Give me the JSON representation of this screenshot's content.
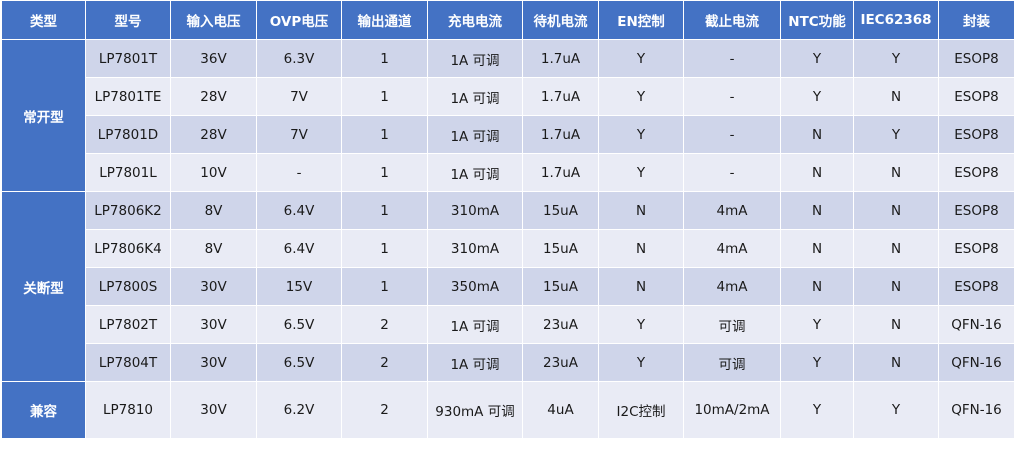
{
  "table": {
    "headers": [
      "类型",
      "型号",
      "输入电压",
      "OVP电压",
      "输出通道",
      "充电电流",
      "待机电流",
      "EN控制",
      "截止电流",
      "NTC功能",
      "IEC62368",
      "封装"
    ],
    "groups": [
      {
        "label": "常开型",
        "rows": [
          [
            "LP7801T",
            "36V",
            "6.3V",
            "1",
            "1A 可调",
            "1.7uA",
            "Y",
            "-",
            "Y",
            "Y",
            "ESOP8"
          ],
          [
            "LP7801TE",
            "28V",
            "7V",
            "1",
            "1A 可调",
            "1.7uA",
            "Y",
            "-",
            "Y",
            "N",
            "ESOP8"
          ],
          [
            "LP7801D",
            "28V",
            "7V",
            "1",
            "1A 可调",
            "1.7uA",
            "Y",
            "-",
            "N",
            "Y",
            "ESOP8"
          ],
          [
            "LP7801L",
            "10V",
            "-",
            "1",
            "1A 可调",
            "1.7uA",
            "Y",
            "-",
            "N",
            "N",
            "ESOP8"
          ]
        ]
      },
      {
        "label": "关断型",
        "rows": [
          [
            "LP7806K2",
            "8V",
            "6.4V",
            "1",
            "310mA",
            "15uA",
            "N",
            "4mA",
            "N",
            "N",
            "ESOP8"
          ],
          [
            "LP7806K4",
            "8V",
            "6.4V",
            "1",
            "310mA",
            "15uA",
            "N",
            "4mA",
            "N",
            "N",
            "ESOP8"
          ],
          [
            "LP7800S",
            "30V",
            "15V",
            "1",
            "350mA",
            "15uA",
            "N",
            "4mA",
            "N",
            "N",
            "ESOP8"
          ],
          [
            "LP7802T",
            "30V",
            "6.5V",
            "2",
            "1A 可调",
            "23uA",
            "Y",
            "可调",
            "Y",
            "N",
            "QFN-16"
          ],
          [
            "LP7804T",
            "30V",
            "6.5V",
            "2",
            "1A 可调",
            "23uA",
            "Y",
            "可调",
            "Y",
            "N",
            "QFN-16"
          ]
        ]
      },
      {
        "label": "兼容",
        "rows": [
          [
            "LP7810",
            "30V",
            "6.2V",
            "2",
            "930mA 可调",
            "4uA",
            "I2C控制",
            "10mA/2mA",
            "Y",
            "Y",
            "QFN-16"
          ]
        ]
      }
    ]
  },
  "colors": {
    "header": "#4472c4",
    "row_odd": "#cfd5ea",
    "row_even": "#e9ebf5"
  }
}
